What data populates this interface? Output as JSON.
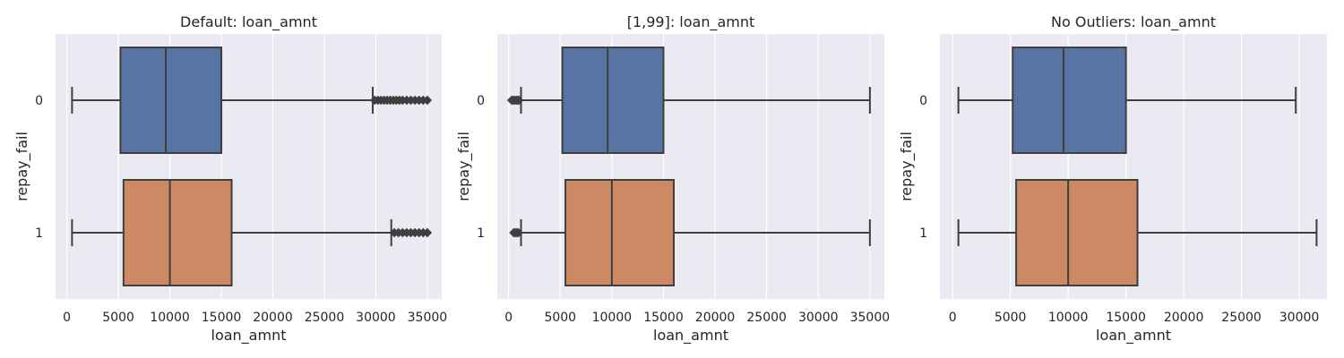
{
  "chart_data": [
    {
      "type": "boxplot",
      "title": "Default: loan_amnt",
      "xlabel": "loan_amnt",
      "ylabel": "repay_fail",
      "xlim": [
        -1100,
        36400
      ],
      "xticks": [
        0,
        5000,
        10000,
        15000,
        20000,
        25000,
        30000,
        35000
      ],
      "categories": [
        "0",
        "1"
      ],
      "colors": [
        "#5874a4",
        "#cc8963"
      ],
      "boxes": [
        {
          "category": "0",
          "whisker_low": 500,
          "q1": 5200,
          "median": 9600,
          "q3": 15000,
          "whisker_high": 29700,
          "fliers": [
            29900,
            30200,
            30500,
            30800,
            31100,
            31400,
            31700,
            32000,
            32300,
            32600,
            33000,
            33400,
            33800,
            34200,
            34600,
            35000
          ]
        },
        {
          "category": "1",
          "whisker_low": 500,
          "q1": 5500,
          "median": 10000,
          "q3": 16000,
          "whisker_high": 31500,
          "fliers": [
            31800,
            32200,
            32600,
            33000,
            33400,
            33800,
            34200,
            34600,
            35000
          ]
        }
      ]
    },
    {
      "type": "boxplot",
      "title": "[1,99]: loan_amnt",
      "xlabel": "loan_amnt",
      "ylabel": "repay_fail",
      "xlim": [
        -1100,
        36400
      ],
      "xticks": [
        0,
        5000,
        10000,
        15000,
        20000,
        25000,
        30000,
        35000
      ],
      "categories": [
        "0",
        "1"
      ],
      "colors": [
        "#5874a4",
        "#cc8963"
      ],
      "boxes": [
        {
          "category": "0",
          "whisker_low": 1200,
          "q1": 5200,
          "median": 9600,
          "q3": 15000,
          "whisker_high": 35000,
          "fliers": [
            300,
            450,
            600,
            750,
            900,
            1000
          ]
        },
        {
          "category": "1",
          "whisker_low": 1200,
          "q1": 5500,
          "median": 10000,
          "q3": 16000,
          "whisker_high": 35000,
          "fliers": [
            500,
            650,
            800,
            950
          ]
        }
      ]
    },
    {
      "type": "boxplot",
      "title": "No Outliers: loan_amnt",
      "xlabel": "loan_amnt",
      "ylabel": "repay_fail",
      "xlim": [
        -1100,
        32400
      ],
      "xticks": [
        0,
        5000,
        10000,
        15000,
        20000,
        25000,
        30000
      ],
      "categories": [
        "0",
        "1"
      ],
      "colors": [
        "#5874a4",
        "#cc8963"
      ],
      "boxes": [
        {
          "category": "0",
          "whisker_low": 500,
          "q1": 5200,
          "median": 9600,
          "q3": 15000,
          "whisker_high": 29700,
          "fliers": []
        },
        {
          "category": "1",
          "whisker_low": 500,
          "q1": 5500,
          "median": 10000,
          "q3": 16000,
          "whisker_high": 31500,
          "fliers": []
        }
      ]
    }
  ]
}
